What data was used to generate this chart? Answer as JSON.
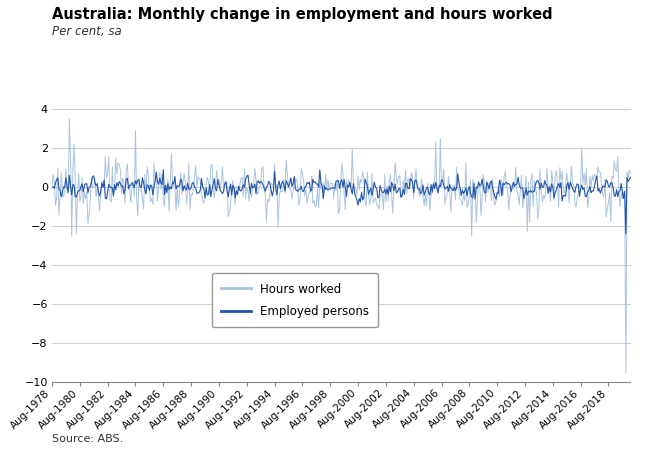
{
  "title": "Australia: Monthly change in employment and hours worked",
  "subtitle": "Per cent, sa",
  "source": "Source: ABS.",
  "ylim": [
    -10,
    4
  ],
  "yticks": [
    -10,
    -8,
    -6,
    -4,
    -2,
    0,
    2,
    4
  ],
  "color_hours": "#aac4df",
  "color_employed": "#2255aa",
  "legend_labels": [
    "Hours worked",
    "Employed persons"
  ],
  "n_months": 500
}
